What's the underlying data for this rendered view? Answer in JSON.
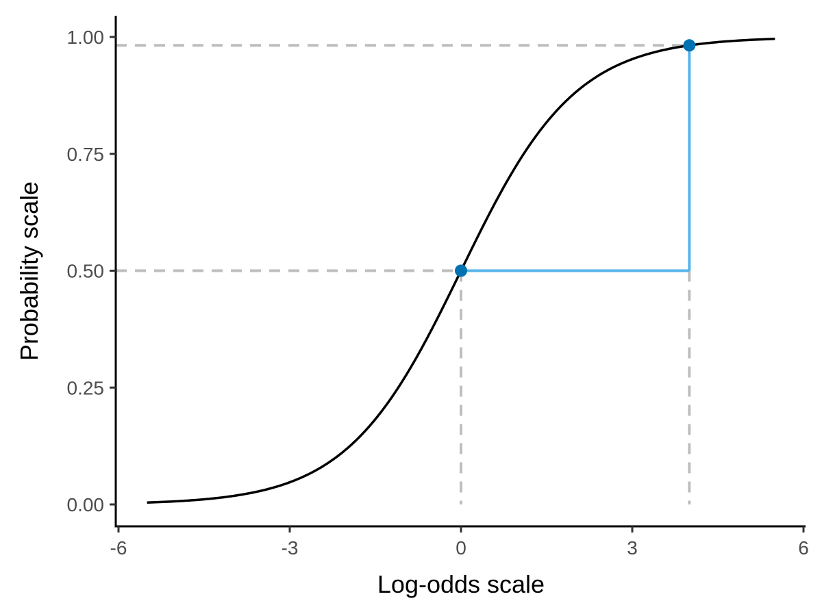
{
  "chart_data": {
    "type": "line",
    "title": "",
    "xlabel": "Log-odds scale",
    "ylabel": "Probability scale",
    "xlim": [
      -6,
      6
    ],
    "ylim": [
      0,
      1
    ],
    "x_ticks": [
      -6,
      -3,
      0,
      3,
      6
    ],
    "x_tick_labels": [
      "-6",
      "-3",
      "0",
      "3",
      "6"
    ],
    "y_ticks": [
      0,
      0.25,
      0.5,
      0.75,
      1
    ],
    "y_tick_labels": [
      "0.00",
      "0.25",
      "0.50",
      "0.75",
      "1.00"
    ],
    "grid": false,
    "legend": "none",
    "series": [
      {
        "kind": "logistic-curve",
        "x_range": [
          -5.5,
          5.5
        ],
        "function": "1 / (1 + exp(-x))",
        "color": "#000000"
      }
    ],
    "points": [
      {
        "x": 0,
        "y": 0.5,
        "color": "#0072B2"
      },
      {
        "x": 4,
        "y": 0.982,
        "color": "#0072B2"
      }
    ],
    "step_segments": [
      {
        "from": [
          0,
          0.5
        ],
        "to": [
          4,
          0.5
        ],
        "color": "#56B4E9"
      },
      {
        "from": [
          4,
          0.5
        ],
        "to": [
          4,
          0.982
        ],
        "color": "#56B4E9"
      }
    ],
    "reference_lines": [
      {
        "orientation": "horizontal",
        "y": 0.5,
        "x_to": 0,
        "style": "dashed",
        "color": "#BEBEBE"
      },
      {
        "orientation": "horizontal",
        "y": 0.982,
        "x_to": 4,
        "style": "dashed",
        "color": "#BEBEBE"
      },
      {
        "orientation": "vertical",
        "x": 0,
        "y_to": 0.5,
        "style": "dashed",
        "color": "#BEBEBE"
      },
      {
        "orientation": "vertical",
        "x": 4,
        "y_to": 0.5,
        "style": "dashed",
        "color": "#BEBEBE"
      }
    ]
  }
}
